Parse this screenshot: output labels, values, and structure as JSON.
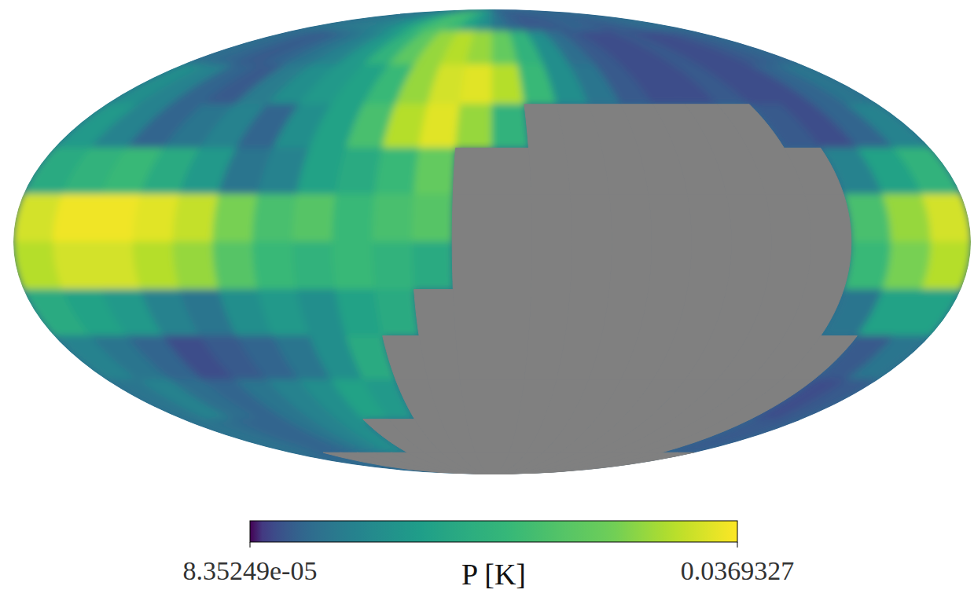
{
  "chart_data": {
    "type": "heatmap",
    "x": [
      172.5,
      157.5,
      142.5,
      127.5,
      112.5,
      97.5,
      82.5,
      67.5,
      52.5,
      37.5,
      22.5,
      7.5,
      -7.5,
      -22.5,
      -37.5,
      -52.5,
      -67.5,
      -82.5,
      -97.5,
      -112.5,
      -127.5,
      -142.5,
      -157.5,
      -172.5
    ],
    "y": [
      82.5,
      67.5,
      52.5,
      37.5,
      22.5,
      7.5,
      -7.5,
      -22.5,
      -37.5,
      -52.5,
      -67.5,
      -82.5
    ],
    "xlim": [
      180,
      -180
    ],
    "ylim": [
      -90,
      90
    ],
    "tick_labels": false,
    "cells": [
      [
        0.006,
        0.006,
        0.007,
        0.007,
        0.008,
        0.01,
        0.014,
        0.02,
        0.022,
        0.02,
        0.014,
        0.01,
        0.006,
        0.004,
        0.003,
        0.003,
        0.003,
        0.004,
        0.004,
        0.003,
        0.003,
        0.004,
        0.005,
        0.005
      ],
      [
        0.005,
        0.004,
        0.003,
        0.004,
        0.006,
        0.008,
        0.012,
        0.018,
        0.025,
        0.03,
        0.032,
        0.03,
        0.026,
        0.018,
        0.01,
        0.005,
        0.003,
        0.002,
        0.002,
        0.003,
        0.002,
        0.002,
        0.003,
        0.004
      ],
      [
        0.01,
        0.008,
        0.004,
        0.003,
        0.007,
        0.01,
        0.012,
        0.014,
        0.02,
        0.03,
        0.034,
        0.035,
        0.032,
        0.02,
        0.01,
        0.006,
        0.003,
        0.002,
        0.002,
        0.003,
        0.002,
        0.002,
        0.004,
        0.006
      ],
      [
        0.012,
        0.008,
        0.004,
        0.006,
        0.008,
        0.004,
        0.01,
        0.014,
        0.022,
        0.032,
        0.035,
        0.03,
        0.018,
        null,
        null,
        null,
        null,
        null,
        null,
        null,
        0.003,
        0.002,
        0.004,
        0.008
      ],
      [
        0.016,
        0.018,
        0.02,
        0.016,
        0.012,
        0.006,
        0.008,
        0.014,
        0.016,
        0.02,
        0.026,
        null,
        null,
        null,
        null,
        null,
        null,
        null,
        null,
        null,
        null,
        0.008,
        0.014,
        0.018
      ],
      [
        0.034,
        0.036,
        0.036,
        0.035,
        0.033,
        0.028,
        0.022,
        0.024,
        0.02,
        0.022,
        0.024,
        null,
        null,
        null,
        null,
        null,
        null,
        null,
        null,
        null,
        null,
        0.022,
        0.03,
        0.034
      ],
      [
        0.032,
        0.034,
        0.034,
        0.032,
        0.03,
        0.024,
        0.02,
        0.018,
        0.02,
        0.018,
        0.016,
        null,
        null,
        null,
        null,
        null,
        null,
        null,
        null,
        null,
        null,
        0.02,
        0.028,
        0.032
      ],
      [
        0.016,
        0.014,
        0.012,
        0.008,
        0.006,
        0.01,
        0.012,
        0.01,
        0.014,
        0.016,
        null,
        null,
        null,
        null,
        null,
        null,
        null,
        null,
        null,
        null,
        null,
        0.006,
        0.014,
        0.014
      ],
      [
        0.008,
        0.006,
        0.004,
        0.002,
        0.003,
        0.004,
        0.006,
        0.01,
        0.016,
        null,
        null,
        null,
        null,
        null,
        null,
        null,
        null,
        null,
        null,
        null,
        null,
        null,
        0.003,
        0.006
      ],
      [
        0.006,
        0.008,
        0.005,
        0.004,
        0.006,
        0.008,
        0.01,
        0.014,
        0.012,
        null,
        null,
        null,
        null,
        null,
        null,
        null,
        null,
        null,
        null,
        null,
        null,
        null,
        0.002,
        0.003
      ],
      [
        0.006,
        0.005,
        0.004,
        0.004,
        0.006,
        0.008,
        0.01,
        null,
        null,
        null,
        null,
        null,
        null,
        null,
        null,
        null,
        null,
        null,
        null,
        null,
        null,
        null,
        0.003,
        0.003
      ],
      [
        0.005,
        0.004,
        null,
        null,
        null,
        null,
        null,
        null,
        null,
        null,
        null,
        null,
        null,
        null,
        null,
        null,
        null,
        null,
        null,
        null,
        null,
        null,
        null,
        null
      ]
    ],
    "colorbar": {
      "label": "P [K]",
      "range": [
        8.35249e-05,
        0.0369327
      ],
      "ticks": [
        {
          "value": 8.35249e-05,
          "label": "8.35249e-05"
        },
        0.0369327
      ]
    }
  }
}
